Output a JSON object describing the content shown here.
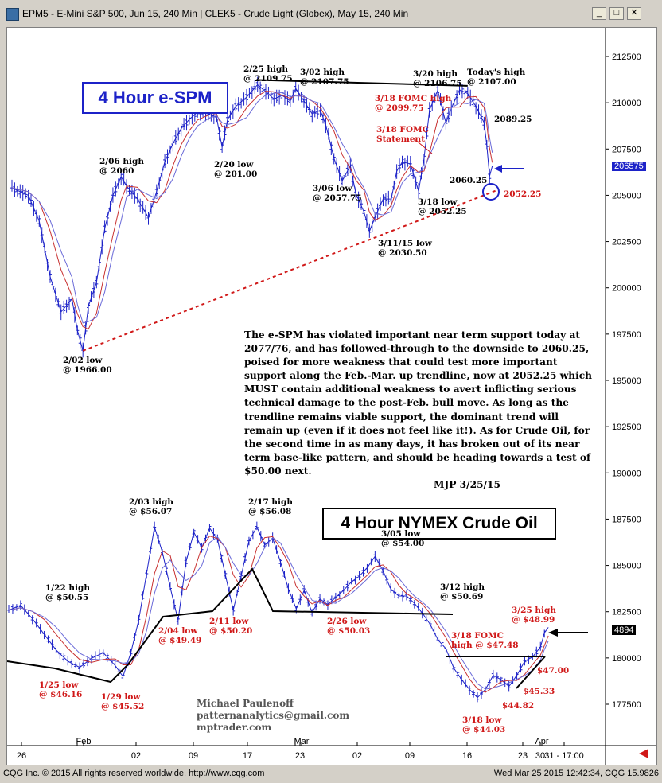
{
  "window": {
    "title": "EPM5 - E-Mini S&P 500, Jun 15, 240 Min   |   CLEK5 - Crude Light (Globex), May 15, 240 Min",
    "minimize": "_",
    "maximize": "□",
    "close": "✕"
  },
  "footer": {
    "left": "CQG Inc. © 2015 All rights reserved worldwide. http://www.cqg.com",
    "right": "Wed Mar 25 2015 12:42:34, CQG 15.9826"
  },
  "panel_titles": {
    "spm": "4 Hour e-SPM",
    "crude": "4 Hour NYMEX Crude Oil"
  },
  "commentary": {
    "text": "The e-SPM has violated important near term support today at 2077/76, and has followed-through to the downside to 2060.25, poised for more weakness that could test more important support along the Feb.-Mar. up trendline, now at 2052.25 which MUST contain additional weakness to avert inflicting serious technical damage to the post-Feb. bull move. As long as the trendline remains viable support, the dominant trend will remain up (even if it does not feel like it!). As for Crude Oil, for the second time in as many days, it has broken out of its near term base-like pattern, and should be heading towards a test of $50.00 next.",
    "signature": "MJP 3/25/15"
  },
  "credits": [
    "Michael Paulenoff",
    "patternanalytics@gmail.com",
    "mptrader.com"
  ],
  "price_tags": {
    "spm": "206575",
    "crude": "4894"
  },
  "colors": {
    "accent_blue": "#1c22c8",
    "red": "#d01818",
    "ma_red": "#c83030",
    "ma_blue": "#6a6ad8"
  },
  "chart_data": {
    "type": "line",
    "x_axis": {
      "tick_labels": [
        "26",
        "Feb",
        "02",
        "09",
        "17",
        "23",
        "Mar",
        "02",
        "09",
        "16",
        "23",
        "30",
        "Apr",
        "31 - 17:00"
      ]
    },
    "y_axis": {
      "position": "right",
      "range": [
        1764,
        2134
      ],
      "tick_labels": [
        "212500",
        "210000",
        "207500",
        "205000",
        "202500",
        "200000",
        "197500",
        "195000",
        "192500",
        "190000",
        "187500",
        "185000",
        "182500",
        "180000",
        "177500"
      ]
    },
    "series": [
      {
        "instrument": "EPM5",
        "points": [
          [
            0,
            2054
          ],
          [
            6,
            2050
          ],
          [
            10,
            2036
          ],
          [
            14,
            2006
          ],
          [
            18,
            1987
          ],
          [
            22,
            1994
          ],
          [
            24,
            1977
          ],
          [
            26,
            1966
          ],
          [
            28,
            1990
          ],
          [
            31,
            2003
          ],
          [
            34,
            2032
          ],
          [
            37,
            2050
          ],
          [
            40,
            2060
          ],
          [
            42,
            2055
          ],
          [
            46,
            2048
          ],
          [
            50,
            2038
          ],
          [
            53,
            2052
          ],
          [
            56,
            2068
          ],
          [
            59,
            2078
          ],
          [
            62,
            2086
          ],
          [
            65,
            2091
          ],
          [
            68,
            2095
          ],
          [
            72,
            2094
          ],
          [
            75,
            2092
          ],
          [
            77,
            2076
          ],
          [
            79,
            2091
          ],
          [
            82,
            2098
          ],
          [
            86,
            2103
          ],
          [
            90,
            2109.75
          ],
          [
            93,
            2106
          ],
          [
            96,
            2102
          ],
          [
            99,
            2104
          ],
          [
            102,
            2101
          ],
          [
            104,
            2107.75
          ],
          [
            107,
            2101
          ],
          [
            110,
            2094
          ],
          [
            113,
            2096
          ],
          [
            115,
            2088
          ],
          [
            118,
            2070
          ],
          [
            121,
            2057.75
          ],
          [
            124,
            2066
          ],
          [
            126,
            2051
          ],
          [
            129,
            2041
          ],
          [
            131,
            2030.5
          ],
          [
            133,
            2038
          ],
          [
            136,
            2048
          ],
          [
            139,
            2048
          ],
          [
            141,
            2063
          ],
          [
            143,
            2068
          ],
          [
            146,
            2067
          ],
          [
            149,
            2052.25
          ],
          [
            151,
            2070
          ],
          [
            153,
            2096
          ],
          [
            156,
            2106.75
          ],
          [
            159,
            2089
          ],
          [
            161,
            2097
          ],
          [
            164,
            2107
          ],
          [
            167,
            2105
          ],
          [
            170,
            2098
          ],
          [
            173,
            2089.25
          ],
          [
            174,
            2077
          ],
          [
            175,
            2060.25
          ],
          [
            176,
            2065.75
          ]
        ],
        "annotations": [
          "2/25 high\n@ 2109.75",
          "3/02 high\n@ 2107.75",
          "3/20 high\n@ 2106.75",
          "Today's high\n@ 2107.00",
          "3/18 FOMC high\n@ 2099.75",
          "3/18 FOMC\nStatement",
          "2089.25",
          "2/06 high\n@ 2060",
          "2/20 low\n@ 201.00",
          "3/06 low\n@ 2057.75",
          "2060.25",
          "3/18 low\n@ 2052.25",
          "2052.25",
          "3/11/15 low\n@ 2030.50",
          "2/02 low\n@ 1966.00"
        ]
      },
      {
        "instrument": "CLEK5",
        "points": [
          [
            0,
            50.2
          ],
          [
            3,
            50.55
          ],
          [
            6,
            49.6
          ],
          [
            9,
            48.5
          ],
          [
            12,
            47.4
          ],
          [
            15,
            46.6
          ],
          [
            18,
            46.16
          ],
          [
            21,
            46.8
          ],
          [
            24,
            47.2
          ],
          [
            27,
            46.3
          ],
          [
            29,
            45.52
          ],
          [
            31,
            47.2
          ],
          [
            33,
            49.5
          ],
          [
            35,
            52.8
          ],
          [
            37,
            56.07
          ],
          [
            39,
            54.3
          ],
          [
            41,
            51.8
          ],
          [
            43,
            49.49
          ],
          [
            45,
            53.6
          ],
          [
            47,
            55.7
          ],
          [
            49,
            54.6
          ],
          [
            51,
            56.0
          ],
          [
            53,
            55.2
          ],
          [
            55,
            52.7
          ],
          [
            57,
            50.2
          ],
          [
            59,
            52.6
          ],
          [
            61,
            55.1
          ],
          [
            63,
            56.08
          ],
          [
            65,
            54.8
          ],
          [
            67,
            55.3
          ],
          [
            69,
            53.6
          ],
          [
            71,
            51.7
          ],
          [
            73,
            50.3
          ],
          [
            75,
            51.6
          ],
          [
            77,
            50.03
          ],
          [
            79,
            51.0
          ],
          [
            81,
            50.6
          ],
          [
            83,
            51.1
          ],
          [
            85,
            51.6
          ],
          [
            87,
            52.2
          ],
          [
            89,
            52.6
          ],
          [
            91,
            53.2
          ],
          [
            93,
            54.0
          ],
          [
            95,
            53.0
          ],
          [
            97,
            51.7
          ],
          [
            99,
            51.2
          ],
          [
            101,
            51.2
          ],
          [
            103,
            50.69
          ],
          [
            105,
            50.0
          ],
          [
            107,
            49.2
          ],
          [
            109,
            48.1
          ],
          [
            111,
            47.48
          ],
          [
            113,
            46.1
          ],
          [
            115,
            45.3
          ],
          [
            117,
            44.6
          ],
          [
            119,
            44.03
          ],
          [
            121,
            44.6
          ],
          [
            123,
            45.6
          ],
          [
            125,
            45.3
          ],
          [
            127,
            44.82
          ],
          [
            129,
            45.6
          ],
          [
            131,
            46.6
          ],
          [
            133,
            46.9
          ],
          [
            135,
            47.6
          ],
          [
            136,
            48.6
          ],
          [
            137,
            48.99
          ]
        ],
        "annotations": [
          "2/03 high\n@ $56.07",
          "2/17 high\n@ $56.08",
          "3/05 low\n@ $54.00",
          "1/22 high\n@ $50.55",
          "3/12 high\n@ $50.69",
          "2/04 low\n@ $49.49",
          "2/11 low\n@ $50.20",
          "2/26 low\n@ $50.03",
          "3/25 high\n@ $48.99",
          "3/18 FOMC\nhigh @ $47.48",
          "$47.00",
          "1/25 low\n@ $46.16",
          "1/29 low\n@ $45.52",
          "$45.33",
          "$44.82",
          "3/18 low\n@ $44.03"
        ]
      }
    ]
  }
}
